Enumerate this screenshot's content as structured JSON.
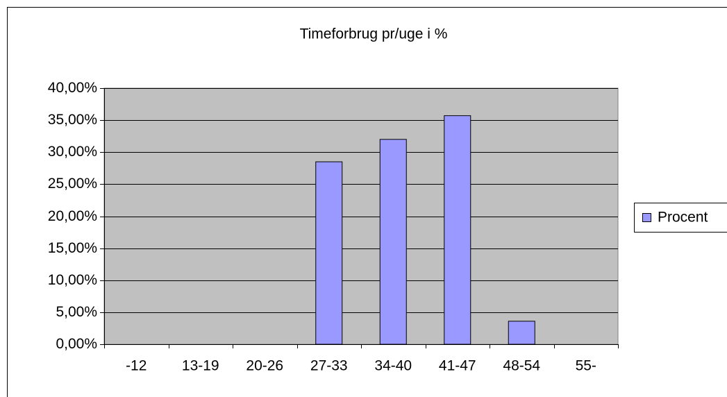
{
  "chart_data": {
    "type": "bar",
    "title": "Timeforbrug pr/uge i %",
    "categories": [
      "-12",
      "13-19",
      "20-26",
      "27-33",
      "34-40",
      "41-47",
      "48-54",
      "55-"
    ],
    "series": [
      {
        "name": "Procent",
        "color": "#9999ff",
        "values": [
          0,
          0,
          0,
          28.5,
          32,
          35.7,
          3.6,
          0
        ]
      }
    ],
    "ylim": [
      0,
      40
    ],
    "yticks": [
      {
        "value": 0,
        "label": "0,00%"
      },
      {
        "value": 5,
        "label": "5,00%"
      },
      {
        "value": 10,
        "label": "10,00%"
      },
      {
        "value": 15,
        "label": "15,00%"
      },
      {
        "value": 20,
        "label": "20,00%"
      },
      {
        "value": 25,
        "label": "25,00%"
      },
      {
        "value": 30,
        "label": "30,00%"
      },
      {
        "value": 35,
        "label": "35,00%"
      },
      {
        "value": 40,
        "label": "40,00%"
      }
    ],
    "grid": true,
    "legend": "right"
  }
}
